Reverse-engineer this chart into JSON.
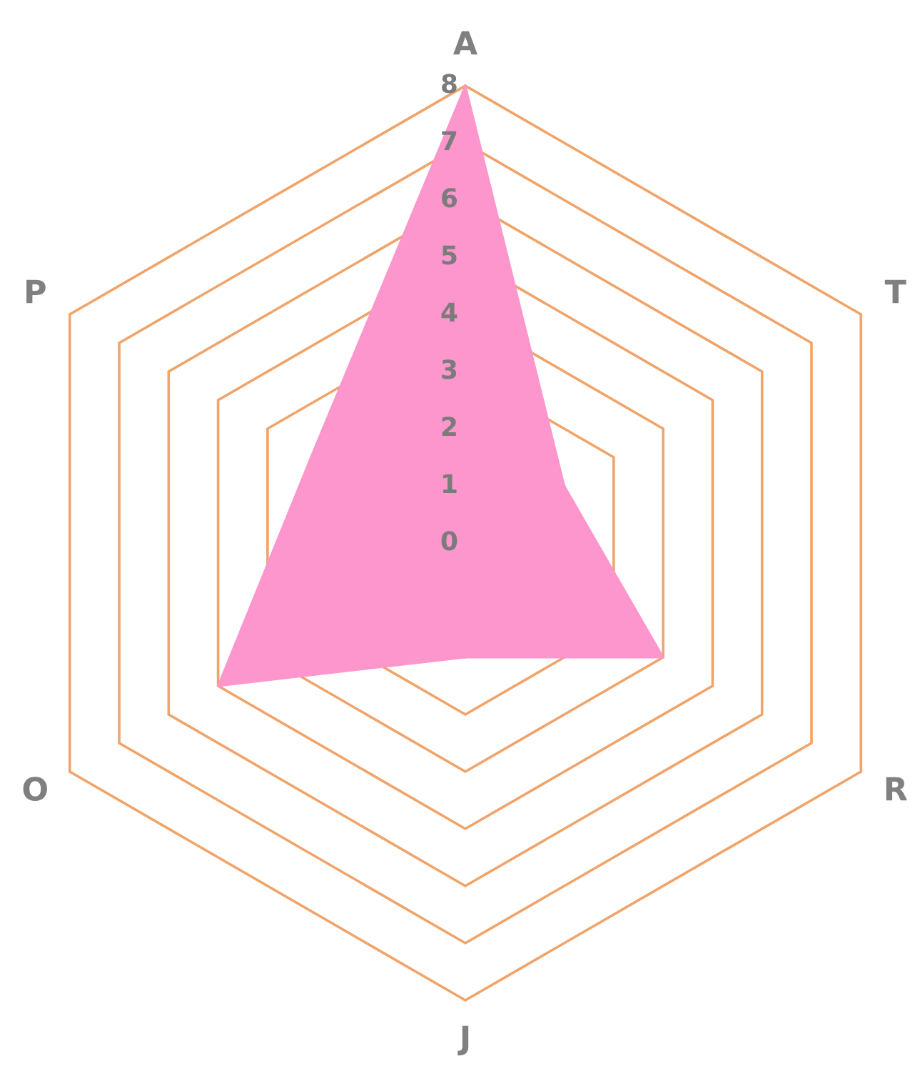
{
  "chart_data": {
    "type": "radar",
    "categories": [
      "A",
      "T",
      "R",
      "J",
      "O",
      "P"
    ],
    "series": [
      {
        "color": "#fc96cc",
        "values": [
          8,
          2,
          4,
          2,
          5,
          3.1
        ]
      }
    ],
    "ylim": [
      0,
      8
    ],
    "yticks": [
      0,
      1,
      2,
      3,
      4,
      5,
      6,
      7,
      8
    ],
    "grid": true
  }
}
